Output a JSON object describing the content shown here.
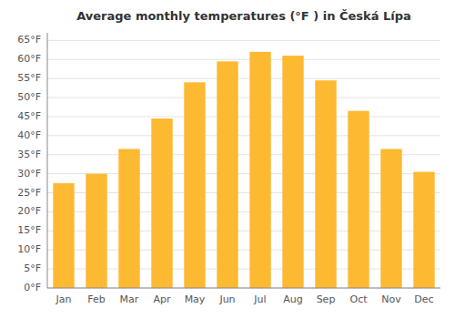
{
  "chart_data": {
    "type": "bar",
    "title": "Average monthly temperatures (°F ) in Česká Lípa",
    "categories": [
      "Jan",
      "Feb",
      "Mar",
      "Apr",
      "May",
      "Jun",
      "Jul",
      "Aug",
      "Sep",
      "Oct",
      "Nov",
      "Dec"
    ],
    "values": [
      27.5,
      30.0,
      36.5,
      44.5,
      54.0,
      59.5,
      62.0,
      61.0,
      54.5,
      46.5,
      36.5,
      30.5
    ],
    "color": "#FDB931",
    "ylim": [
      0,
      67
    ],
    "yticks": [
      {
        "value": 0,
        "label": "0°F"
      },
      {
        "value": 5,
        "label": "5°F"
      },
      {
        "value": 10,
        "label": "10°F"
      },
      {
        "value": 15,
        "label": "15°F"
      },
      {
        "value": 20,
        "label": "20°F"
      },
      {
        "value": 25,
        "label": "25°F"
      },
      {
        "value": 30,
        "label": "30°F"
      },
      {
        "value": 35,
        "label": "35°F"
      },
      {
        "value": 40,
        "label": "40°F"
      },
      {
        "value": 45,
        "label": "45°F"
      },
      {
        "value": 50,
        "label": "50°F"
      },
      {
        "value": 55,
        "label": "55°F"
      },
      {
        "value": 60,
        "label": "60°F"
      },
      {
        "value": 65,
        "label": "65°F"
      }
    ],
    "grid": true
  }
}
